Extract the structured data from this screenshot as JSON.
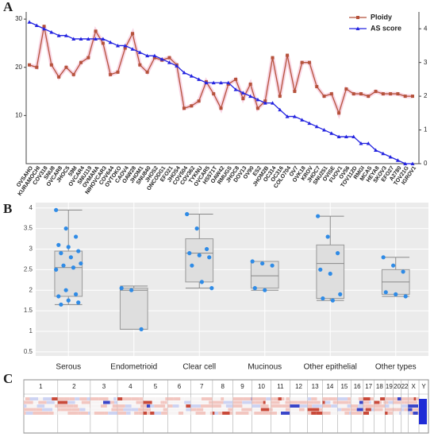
{
  "chart_data": [
    {
      "type": "line",
      "panel": "A",
      "categories": [
        "OVSAHO",
        "KURAMOCHI",
        "COV318",
        "SNU8",
        "OVCAR8",
        "JHOC5",
        "59M",
        "OVCAR4",
        "SNU119",
        "OVMANA",
        "NIHOVCAR3",
        "COV644",
        "OVTOKO",
        "CAOV4",
        "OAW28",
        "JHOM1",
        "SNU840",
        "JHOS2",
        "ONCODG1",
        "EFO21",
        "JHOS4",
        "COV504",
        "COV362",
        "TYKNU",
        "OVCAR5",
        "HS571T",
        "OAW42",
        "RMUGS",
        "JHOC8",
        "DOV13",
        "OV90",
        "ES2",
        "JHOM2B",
        "OC314",
        "OC316",
        "COLO704",
        "OV7",
        "OVK18",
        "KROV",
        "JHOC7",
        "SNU251",
        "OVISE",
        "FUOV1",
        "OV56",
        "TOV112D",
        "RMGI",
        "MCAS",
        "HEYA8",
        "SKOV3",
        "EFO27",
        "A2780",
        "TOV21G",
        "IGROV1"
      ],
      "series": [
        {
          "name": "Ploidy",
          "color": "#b5523b",
          "axis": "y",
          "values": [
            20.5,
            20,
            28.5,
            20.5,
            18,
            20,
            18.5,
            21,
            22,
            27.5,
            25,
            18.5,
            19,
            24,
            27,
            20.5,
            19,
            22,
            21.5,
            22,
            20.5,
            11.5,
            12,
            13,
            17,
            14.5,
            11.5,
            16.5,
            17.5,
            13.5,
            16.5,
            11.5,
            13,
            22,
            14,
            22.5,
            15,
            21,
            21,
            16,
            14,
            14.5,
            10.5,
            15.5,
            14.5,
            14.5,
            14,
            15,
            14.5,
            14.5,
            14.5,
            14,
            14
          ]
        },
        {
          "name": "AS score",
          "color": "#2424e0",
          "axis": "y2",
          "values": [
            4.2,
            4.1,
            4.0,
            3.9,
            3.8,
            3.8,
            3.7,
            3.7,
            3.7,
            3.7,
            3.7,
            3.6,
            3.5,
            3.5,
            3.4,
            3.3,
            3.2,
            3.2,
            3.1,
            3.0,
            2.9,
            2.7,
            2.6,
            2.5,
            2.4,
            2.4,
            2.4,
            2.4,
            2.2,
            2.1,
            2.0,
            1.9,
            1.8,
            1.8,
            1.6,
            1.4,
            1.4,
            1.3,
            1.2,
            1.1,
            1.0,
            0.9,
            0.8,
            0.8,
            0.8,
            0.6,
            0.6,
            0.4,
            0.3,
            0.2,
            0.1,
            0,
            0
          ]
        }
      ],
      "ylim": [
        0,
        31.5
      ],
      "yticks": [
        10,
        20,
        30
      ],
      "y2lim": [
        0,
        4.5
      ],
      "y2ticks": [
        0,
        1,
        2,
        3,
        4
      ],
      "legend": "upper right"
    },
    {
      "type": "box",
      "panel": "B",
      "categories": [
        "Serous",
        "Endometrioid",
        "Clear cell",
        "Mucinous",
        "Other epithelial",
        "Other types"
      ],
      "boxes": [
        {
          "whisker_low": 1.65,
          "q1": 1.85,
          "median": 2.55,
          "q3": 2.95,
          "whisker_high": 3.95,
          "points": [
            3.95,
            3.5,
            3.3,
            3.1,
            3.05,
            2.95,
            2.9,
            2.8,
            2.65,
            2.6,
            2.55,
            2.5,
            2.0,
            1.9,
            1.85,
            1.75,
            1.7,
            1.65
          ]
        },
        {
          "whisker_low": 1.05,
          "q1": 1.05,
          "median": 2.0,
          "q3": 2.05,
          "whisker_high": 2.1,
          "points": [
            2.05,
            2.0,
            1.05
          ]
        },
        {
          "whisker_low": 2.05,
          "q1": 2.2,
          "median": 2.9,
          "q3": 3.25,
          "whisker_high": 3.85,
          "points": [
            3.85,
            3.5,
            3.0,
            2.9,
            2.85,
            2.8,
            2.6,
            2.2,
            2.05
          ]
        },
        {
          "whisker_low": 2.0,
          "q1": 2.05,
          "median": 2.35,
          "q3": 2.7,
          "whisker_high": 2.7,
          "points": [
            2.7,
            2.65,
            2.6,
            2.05,
            2.0
          ]
        },
        {
          "whisker_low": 1.75,
          "q1": 1.8,
          "median": 2.65,
          "q3": 3.1,
          "whisker_high": 3.8,
          "points": [
            3.8,
            3.3,
            2.9,
            2.5,
            2.4,
            1.9,
            1.8,
            1.75
          ]
        },
        {
          "whisker_low": 1.85,
          "q1": 1.9,
          "median": 2.2,
          "q3": 2.5,
          "whisker_high": 2.8,
          "points": [
            2.8,
            2.6,
            2.45,
            1.95,
            1.9,
            1.85
          ]
        }
      ],
      "ylim": [
        0.4,
        4.13
      ],
      "yticks": [
        0.5,
        1,
        1.5,
        2,
        2.5,
        3,
        3.5,
        4
      ],
      "grid": true
    }
  ],
  "panel_c": {
    "panel": "C",
    "chromosomes": [
      "1",
      "2",
      "3",
      "4",
      "5",
      "6",
      "7",
      "8",
      "9",
      "10",
      "11",
      "12",
      "13",
      "14",
      "15",
      "16",
      "17",
      "18",
      "19",
      "20",
      "22",
      "X",
      "Y"
    ]
  }
}
